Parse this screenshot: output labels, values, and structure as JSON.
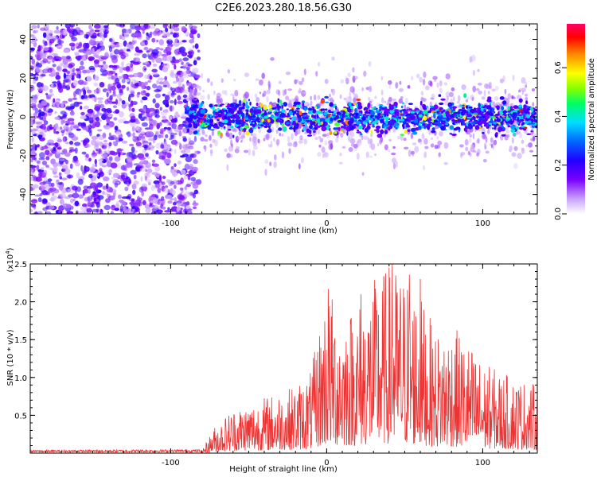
{
  "figure_title": "C2E6.2023.280.18.56.G30",
  "chart_data": [
    {
      "type": "heatmap",
      "xlabel": "Height of straight line (km)",
      "ylabel": "Frequency (Hz)",
      "xlim": [
        -190,
        135
      ],
      "ylim": [
        -50,
        48
      ],
      "x_ticks": [
        -100,
        0,
        100
      ],
      "x_tick_labels": [
        "-100",
        "0",
        "100"
      ],
      "y_ticks": [
        -40,
        -20,
        0,
        20,
        40
      ],
      "y_tick_labels": [
        "-40",
        "-20",
        "0",
        "20",
        "40"
      ],
      "colorbar": {
        "label": "Normalized spectral amplitude",
        "range": [
          0,
          0.78
        ],
        "ticks": [
          0,
          0.2,
          0.4,
          0.6
        ],
        "tick_labels": [
          "0.0",
          "0.2",
          "0.4",
          "0.6"
        ],
        "colormap": [
          "#ffffff",
          "#c8a0ff",
          "#7a00ff",
          "#2200ff",
          "#0066ff",
          "#00ddff",
          "#00ff66",
          "#88ff00",
          "#ffff00",
          "#ff8800",
          "#ff0000",
          "#ff0066"
        ]
      },
      "description_regions": [
        {
          "x_range": [
            -190,
            -82
          ],
          "pattern": "noise",
          "freq_range": [
            -50,
            48
          ]
        },
        {
          "x_range": [
            -90,
            135
          ],
          "pattern": "signal band",
          "center_freq": 0,
          "halfwidth": 7
        }
      ]
    },
    {
      "type": "line",
      "xlabel": "Height of straight line (km)",
      "ylabel": "SNR (10 * v/v)",
      "y_multiplier": "(x10^4)",
      "xlim": [
        -190,
        135
      ],
      "ylim": [
        0,
        2.5
      ],
      "x_ticks": [
        -100,
        0,
        100
      ],
      "x_tick_labels": [
        "-100",
        "0",
        "100"
      ],
      "y_ticks": [
        0.5,
        1.0,
        1.5,
        2.0,
        2.5
      ],
      "y_tick_labels": [
        "0.5",
        "1.0",
        "1.5",
        "2.0",
        "2.5"
      ],
      "line_color": "#ee3333",
      "envelope": {
        "x": [
          -190,
          -80,
          -72,
          -60,
          -40,
          -20,
          -10,
          0,
          10,
          20,
          30,
          40,
          50,
          60,
          70,
          80,
          90,
          100,
          110,
          120,
          130,
          135
        ],
        "max": [
          0.03,
          0.04,
          0.35,
          0.6,
          0.75,
          0.9,
          1.1,
          2.2,
          1.9,
          2.0,
          2.3,
          2.5,
          2.4,
          2.1,
          1.6,
          1.7,
          1.5,
          1.2,
          1.1,
          1.0,
          0.95,
          0.9
        ]
      },
      "peaks": [
        {
          "x": 1,
          "y": 2.17
        },
        {
          "x": 22,
          "y": 2.1
        },
        {
          "x": 42,
          "y": 2.5
        },
        {
          "x": 53,
          "y": 2.36
        },
        {
          "x": 60,
          "y": 2.3
        }
      ]
    }
  ]
}
